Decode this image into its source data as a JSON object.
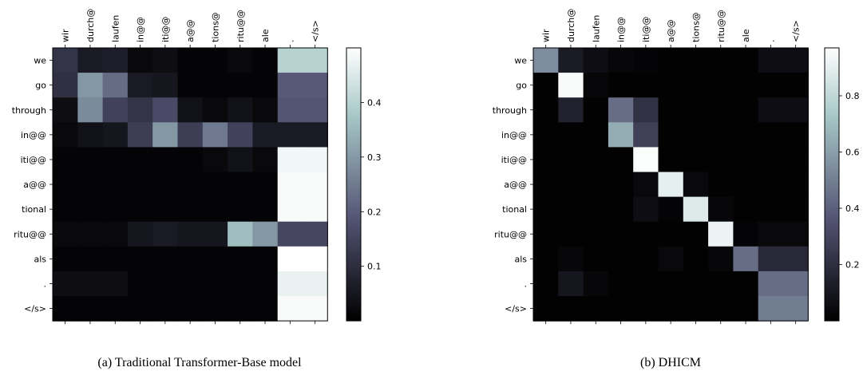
{
  "figure": {
    "captions": [
      "(a) Traditional Transformer-Base model",
      "(b) DHICM"
    ]
  },
  "chart_data": [
    {
      "type": "heatmap",
      "title": "",
      "x_tokens": [
        "wir",
        "durch@@",
        "laufen",
        "in@@",
        "iti@@",
        "a@@",
        "tions@@",
        "ritu@@",
        "ale",
        ".",
        "</s>"
      ],
      "x_labels_shown": [
        "wir",
        "durch@",
        "laufen",
        "in@@",
        "iti@@",
        "a@@",
        "tions@",
        "ritu@@",
        "ale",
        ".",
        "</s>"
      ],
      "y_tokens": [
        "we",
        "go",
        "through",
        "in@@",
        "iti@@",
        "a@@",
        "tional",
        "ritu@@",
        "als",
        ".",
        "</s>"
      ],
      "colormap": "bone",
      "colorbar": {
        "vmin": 0.0,
        "vmax": 0.5,
        "ticks": [
          0.1,
          0.2,
          0.3,
          0.4
        ],
        "tick_labels": [
          "0.1",
          "0.2",
          "0.3",
          "0.4"
        ]
      },
      "values": [
        [
          0.12,
          0.06,
          0.07,
          0.02,
          0.03,
          0.01,
          0.01,
          0.02,
          0.01,
          0.4,
          0.4
        ],
        [
          0.11,
          0.3,
          0.23,
          0.06,
          0.05,
          0.01,
          0.01,
          0.01,
          0.01,
          0.2,
          0.2
        ],
        [
          0.03,
          0.28,
          0.15,
          0.12,
          0.17,
          0.04,
          0.02,
          0.04,
          0.02,
          0.19,
          0.19
        ],
        [
          0.02,
          0.04,
          0.05,
          0.14,
          0.3,
          0.14,
          0.25,
          0.15,
          0.06,
          0.06,
          0.06
        ],
        [
          0.01,
          0.01,
          0.01,
          0.01,
          0.01,
          0.01,
          0.02,
          0.04,
          0.02,
          0.48,
          0.48
        ],
        [
          0.01,
          0.01,
          0.01,
          0.01,
          0.01,
          0.01,
          0.01,
          0.01,
          0.01,
          0.49,
          0.49
        ],
        [
          0.01,
          0.01,
          0.01,
          0.01,
          0.01,
          0.01,
          0.01,
          0.01,
          0.01,
          0.49,
          0.49
        ],
        [
          0.02,
          0.02,
          0.02,
          0.05,
          0.06,
          0.05,
          0.05,
          0.36,
          0.3,
          0.16,
          0.16
        ],
        [
          0.01,
          0.01,
          0.01,
          0.01,
          0.01,
          0.01,
          0.01,
          0.01,
          0.01,
          0.5,
          0.5
        ],
        [
          0.03,
          0.03,
          0.03,
          0.01,
          0.01,
          0.01,
          0.01,
          0.01,
          0.01,
          0.47,
          0.47
        ],
        [
          0.01,
          0.01,
          0.01,
          0.01,
          0.01,
          0.01,
          0.01,
          0.01,
          0.01,
          0.49,
          0.49
        ]
      ]
    },
    {
      "type": "heatmap",
      "title": "",
      "x_tokens": [
        "wir",
        "durch@@",
        "laufen",
        "in@@",
        "iti@@",
        "a@@",
        "tions@@",
        "ritu@@",
        "ale",
        ".",
        "</s>"
      ],
      "x_labels_shown": [
        "wir",
        "durch@",
        "laufen",
        "in@@",
        "iti@@",
        "a@@",
        "tions@",
        "ritu@@",
        "ale",
        ".",
        "</s>"
      ],
      "y_tokens": [
        "we",
        "go",
        "through",
        "in@@",
        "iti@@",
        "a@@",
        "tional",
        "ritu@@",
        "als",
        ".",
        "</s>"
      ],
      "colormap": "bone",
      "colorbar": {
        "vmin": 0.0,
        "vmax": 0.97,
        "ticks": [
          0.2,
          0.4,
          0.6,
          0.8
        ],
        "tick_labels": [
          "0.2",
          "0.4",
          "0.6",
          "0.8"
        ]
      },
      "values": [
        [
          0.55,
          0.12,
          0.06,
          0.03,
          0.02,
          0.01,
          0.01,
          0.01,
          0.01,
          0.06,
          0.06
        ],
        [
          0.01,
          0.95,
          0.03,
          0.01,
          0.01,
          0.01,
          0.01,
          0.01,
          0.01,
          0.01,
          0.01
        ],
        [
          0.01,
          0.15,
          0.01,
          0.45,
          0.22,
          0.01,
          0.01,
          0.01,
          0.01,
          0.06,
          0.06
        ],
        [
          0.01,
          0.01,
          0.01,
          0.65,
          0.28,
          0.01,
          0.01,
          0.01,
          0.01,
          0.01,
          0.01
        ],
        [
          0.01,
          0.01,
          0.01,
          0.01,
          0.96,
          0.01,
          0.01,
          0.01,
          0.01,
          0.01,
          0.01
        ],
        [
          0.01,
          0.01,
          0.01,
          0.01,
          0.04,
          0.9,
          0.04,
          0.01,
          0.01,
          0.01,
          0.01
        ],
        [
          0.01,
          0.01,
          0.01,
          0.01,
          0.06,
          0.02,
          0.88,
          0.03,
          0.01,
          0.01,
          0.01
        ],
        [
          0.01,
          0.01,
          0.01,
          0.01,
          0.01,
          0.01,
          0.01,
          0.92,
          0.02,
          0.04,
          0.04
        ],
        [
          0.01,
          0.03,
          0.01,
          0.01,
          0.01,
          0.04,
          0.01,
          0.03,
          0.45,
          0.18,
          0.18
        ],
        [
          0.01,
          0.1,
          0.03,
          0.01,
          0.01,
          0.01,
          0.01,
          0.01,
          0.01,
          0.45,
          0.45
        ],
        [
          0.01,
          0.01,
          0.01,
          0.01,
          0.01,
          0.01,
          0.01,
          0.01,
          0.01,
          0.5,
          0.5
        ]
      ]
    }
  ]
}
